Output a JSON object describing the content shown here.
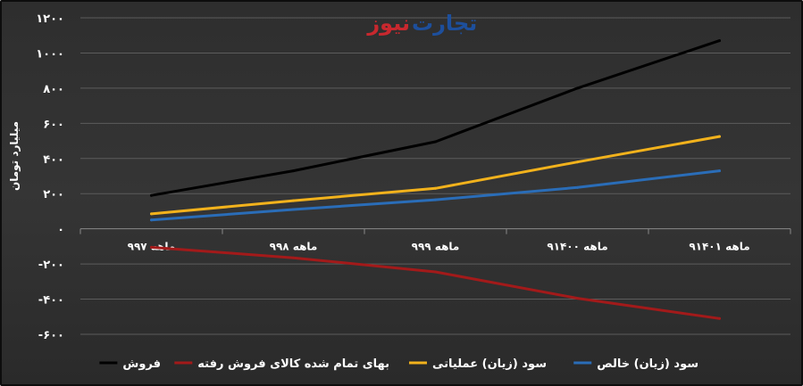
{
  "logo": {
    "part1": "تجارت",
    "part2": "نیوز"
  },
  "chart_data": {
    "type": "line",
    "title": "",
    "xlabel": "",
    "ylabel": "میلیارد تومان",
    "ylim": [
      -600,
      1200
    ],
    "y_ticks": [
      {
        "value": 1200,
        "label": "۱۲۰۰"
      },
      {
        "value": 1000,
        "label": "۱۰۰۰"
      },
      {
        "value": 800,
        "label": "۸۰۰"
      },
      {
        "value": 600,
        "label": "۶۰۰"
      },
      {
        "value": 400,
        "label": "۴۰۰"
      },
      {
        "value": 200,
        "label": "۲۰۰"
      },
      {
        "value": 0,
        "label": "۰"
      },
      {
        "value": -200,
        "label": "-۲۰۰"
      },
      {
        "value": -400,
        "label": "-۴۰۰"
      },
      {
        "value": -600,
        "label": "-۶۰۰"
      }
    ],
    "grid": true,
    "legend_position": "bottom",
    "categories": [
      "۹ماهه ۹۷",
      "۹ماهه ۹۸",
      "۹ماهه ۹۹",
      "۹ماهه ۱۴۰۰",
      "۹ماهه ۱۴۰۱"
    ],
    "series": [
      {
        "name": "فروش",
        "color": "#000000",
        "values": [
          190,
          330,
          495,
          800,
          1070
        ]
      },
      {
        "name": "بهای تمام شده کالای فروش رفته",
        "color": "#a31a1a",
        "values": [
          -105,
          -165,
          -245,
          -395,
          -510
        ]
      },
      {
        "name": "سود (زیان) عملیاتی",
        "color": "#f2b21c",
        "values": [
          85,
          160,
          230,
          380,
          525
        ]
      },
      {
        "name": "سود (زیان) خالص",
        "color": "#2a6db8",
        "values": [
          50,
          110,
          165,
          235,
          330
        ]
      }
    ]
  }
}
